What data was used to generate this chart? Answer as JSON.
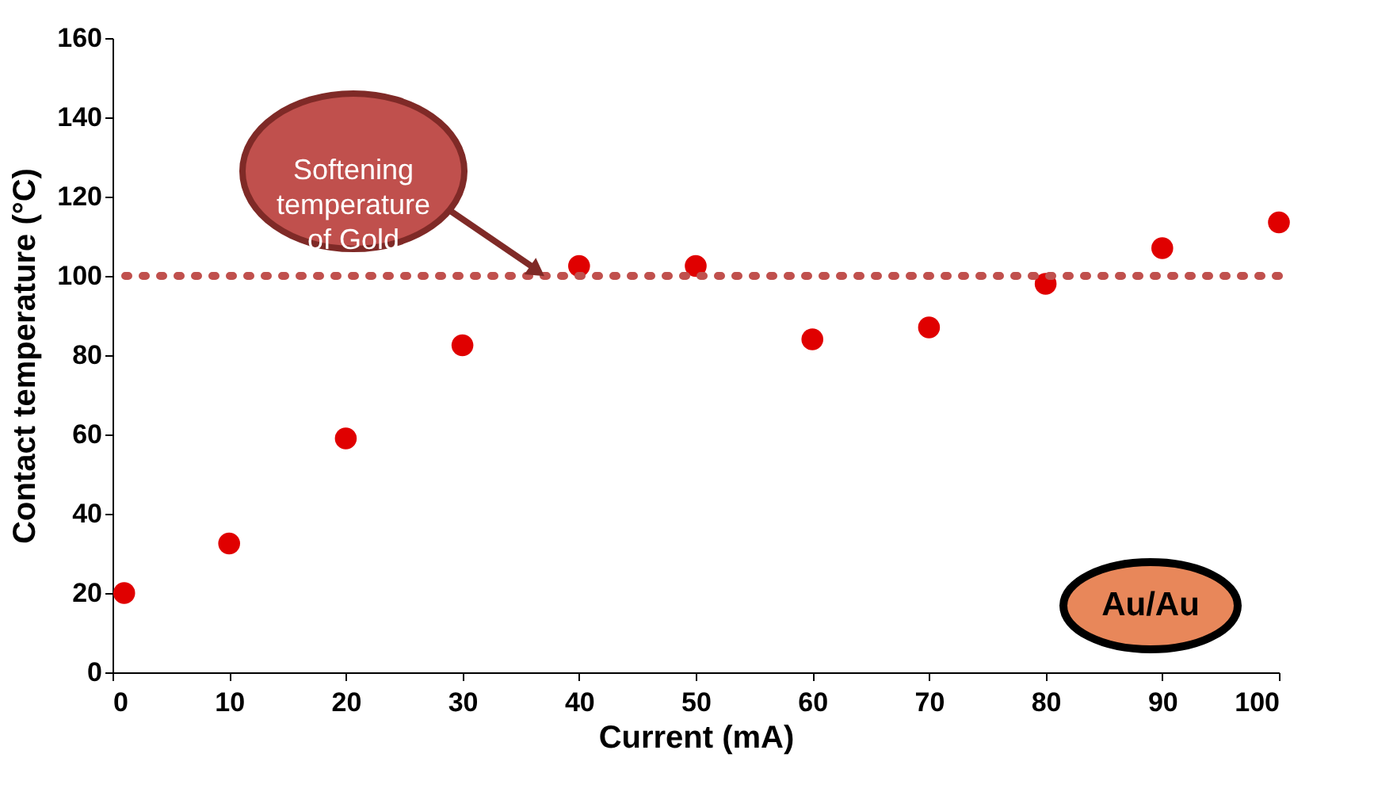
{
  "chart_data": {
    "type": "scatter",
    "xlabel": "Current (mA)",
    "ylabel": "Contact temperature (°C)",
    "x": [
      1,
      10,
      20,
      30,
      40,
      50,
      60,
      70,
      80,
      90,
      100
    ],
    "series": [
      {
        "color": "#e00000",
        "values": [
          20,
          32.5,
          59,
          82.5,
          102.5,
          102.5,
          84,
          87,
          98,
          107,
          113.5
        ]
      }
    ],
    "xlim": [
      0,
      100
    ],
    "xticks": [
      0,
      10,
      20,
      30,
      40,
      50,
      60,
      70,
      80,
      90,
      100
    ],
    "ylim": [
      0,
      160
    ],
    "yticks": [
      0,
      20,
      40,
      60,
      80,
      100,
      120,
      140,
      160
    ],
    "ref_lines": [
      {
        "axis": "y",
        "value": 100,
        "color": "#c0504d",
        "line_style": "dotted"
      }
    ],
    "annotations": [
      [
        "Softening",
        "temperature",
        "of Gold"
      ],
      "Au/Au"
    ],
    "grid": false
  }
}
